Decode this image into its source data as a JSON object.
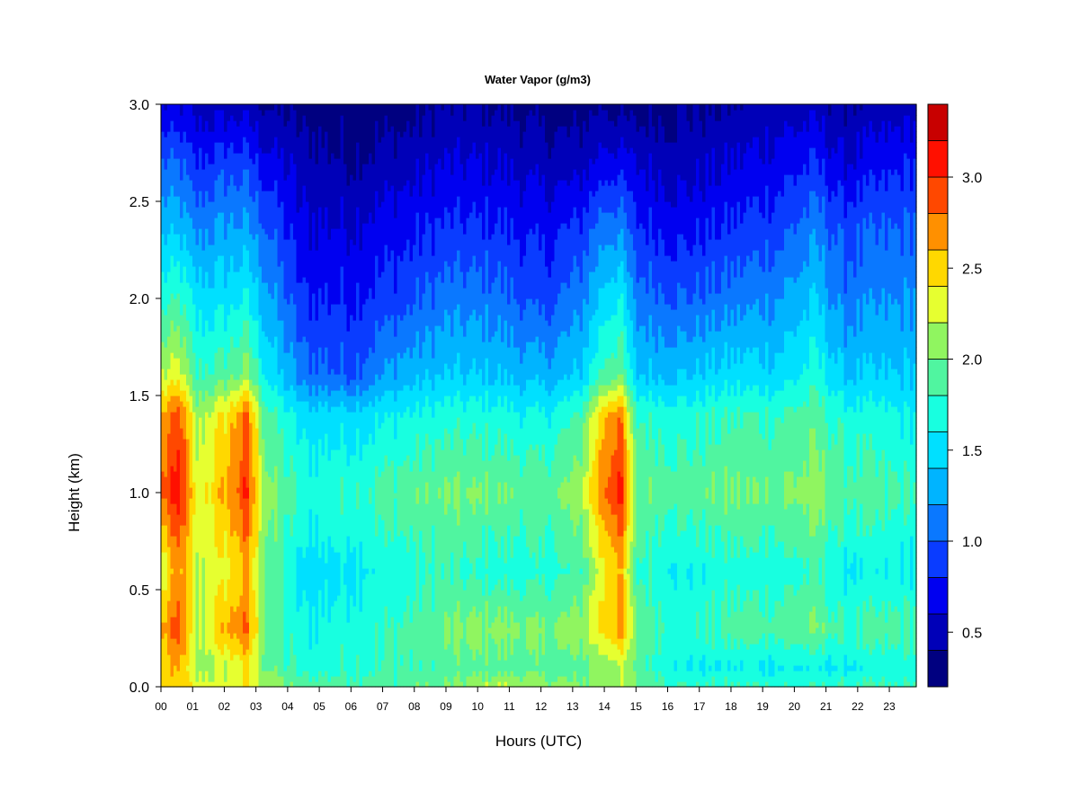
{
  "chart_data": {
    "type": "heatmap",
    "title": "Water Vapor (g/m3)",
    "xlabel": "Hours (UTC)",
    "ylabel": "Height (km)",
    "xlim": [
      0,
      23.85
    ],
    "ylim": [
      0,
      3.0
    ],
    "x_ticks": [
      "00",
      "01",
      "02",
      "03",
      "04",
      "05",
      "06",
      "07",
      "08",
      "09",
      "10",
      "11",
      "12",
      "13",
      "14",
      "15",
      "16",
      "17",
      "18",
      "19",
      "20",
      "21",
      "22",
      "23"
    ],
    "y_ticks": [
      "0.0",
      "0.5",
      "1.0",
      "1.5",
      "2.0",
      "2.5",
      "3.0"
    ],
    "colorbar": {
      "min": 0.2,
      "max": 3.4,
      "levels": [
        0.2,
        0.4,
        0.6,
        0.8,
        1.0,
        1.2,
        1.4,
        1.6,
        1.8,
        2.0,
        2.2,
        2.4,
        2.6,
        2.8,
        3.0,
        3.2,
        3.4
      ],
      "colors": [
        "#000080",
        "#0000b8",
        "#0000f0",
        "#0a3cff",
        "#0a78ff",
        "#00b4ff",
        "#00e0ff",
        "#18ffe0",
        "#50f5a0",
        "#90f560",
        "#e6ff30",
        "#ffd800",
        "#ff9000",
        "#ff4800",
        "#ff1000",
        "#c80000",
        "#800000"
      ],
      "tick_values": [
        0.5,
        1.0,
        1.5,
        2.0,
        2.5,
        3.0
      ],
      "tick_labels": [
        "0.5",
        "1.0",
        "1.5",
        "2.0",
        "2.5",
        "3.0"
      ]
    },
    "profile_heights_km": [
      0.0,
      0.1,
      0.3,
      0.6,
      1.0,
      1.4,
      1.6,
      2.0,
      2.4,
      2.7,
      3.0
    ],
    "profiles": [
      {
        "hour": 0.0,
        "values": [
          2.5,
          2.4,
          2.6,
          2.2,
          2.8,
          2.6,
          2.2,
          1.7,
          1.3,
          1.0,
          0.6
        ]
      },
      {
        "hour": 0.6,
        "values": [
          2.5,
          2.6,
          2.9,
          2.7,
          3.1,
          2.9,
          2.3,
          1.8,
          1.3,
          1.0,
          0.6
        ]
      },
      {
        "hour": 1.1,
        "values": [
          2.3,
          2.1,
          2.1,
          2.2,
          2.3,
          2.1,
          1.8,
          1.5,
          1.1,
          0.8,
          0.5
        ]
      },
      {
        "hour": 2.0,
        "values": [
          2.3,
          2.2,
          2.6,
          2.3,
          2.6,
          2.4,
          1.9,
          1.5,
          1.2,
          0.9,
          0.5
        ]
      },
      {
        "hour": 2.7,
        "values": [
          2.4,
          2.4,
          2.8,
          2.6,
          3.0,
          2.8,
          2.1,
          1.6,
          1.2,
          0.9,
          0.5
        ]
      },
      {
        "hour": 3.3,
        "values": [
          2.2,
          2.0,
          2.0,
          2.0,
          2.1,
          1.9,
          1.6,
          1.3,
          1.0,
          0.7,
          0.4
        ]
      },
      {
        "hour": 4.5,
        "values": [
          1.9,
          1.7,
          1.6,
          1.5,
          1.7,
          1.5,
          1.1,
          0.8,
          0.6,
          0.5,
          0.3
        ]
      },
      {
        "hour": 6.0,
        "values": [
          1.9,
          1.8,
          1.7,
          1.6,
          1.8,
          1.5,
          1.0,
          0.8,
          0.6,
          0.4,
          0.3
        ]
      },
      {
        "hour": 7.5,
        "values": [
          1.9,
          1.8,
          1.8,
          1.7,
          1.9,
          1.6,
          1.3,
          0.9,
          0.7,
          0.5,
          0.3
        ]
      },
      {
        "hour": 9.0,
        "values": [
          2.0,
          1.9,
          2.0,
          1.8,
          2.0,
          1.7,
          1.4,
          1.1,
          0.8,
          0.6,
          0.4
        ]
      },
      {
        "hour": 10.5,
        "values": [
          2.2,
          1.9,
          2.1,
          1.7,
          2.0,
          1.7,
          1.4,
          1.1,
          0.8,
          0.6,
          0.4
        ]
      },
      {
        "hour": 12.0,
        "values": [
          2.1,
          1.9,
          2.0,
          1.7,
          1.9,
          1.6,
          1.3,
          0.9,
          0.7,
          0.5,
          0.3
        ]
      },
      {
        "hour": 13.2,
        "values": [
          2.0,
          1.9,
          2.1,
          1.8,
          2.1,
          1.8,
          1.4,
          1.1,
          0.8,
          0.5,
          0.3
        ]
      },
      {
        "hour": 14.0,
        "values": [
          2.1,
          2.1,
          2.5,
          2.4,
          2.8,
          2.6,
          1.9,
          1.5,
          1.1,
          0.7,
          0.4
        ]
      },
      {
        "hour": 14.5,
        "values": [
          2.2,
          2.2,
          2.7,
          2.6,
          3.1,
          2.8,
          2.0,
          1.6,
          1.1,
          0.7,
          0.3
        ]
      },
      {
        "hour": 15.0,
        "values": [
          2.0,
          1.9,
          2.0,
          1.8,
          2.0,
          1.8,
          1.4,
          1.1,
          0.8,
          0.6,
          0.3
        ]
      },
      {
        "hour": 16.5,
        "values": [
          1.8,
          1.6,
          1.7,
          1.6,
          1.9,
          1.7,
          1.4,
          1.0,
          0.7,
          0.5,
          0.4
        ]
      },
      {
        "hour": 18.0,
        "values": [
          1.8,
          1.6,
          1.9,
          1.7,
          2.0,
          1.8,
          1.5,
          1.1,
          0.8,
          0.6,
          0.4
        ]
      },
      {
        "hour": 19.5,
        "values": [
          1.8,
          1.6,
          1.9,
          1.7,
          2.0,
          1.8,
          1.5,
          1.2,
          0.9,
          0.7,
          0.5
        ]
      },
      {
        "hour": 20.7,
        "values": [
          1.8,
          1.6,
          2.0,
          1.8,
          2.1,
          1.9,
          1.7,
          1.4,
          1.1,
          0.8,
          0.5
        ]
      },
      {
        "hour": 21.5,
        "values": [
          1.8,
          1.6,
          1.8,
          1.6,
          1.9,
          1.7,
          1.4,
          1.1,
          0.9,
          0.6,
          0.4
        ]
      },
      {
        "hour": 23.85,
        "values": [
          1.8,
          1.7,
          1.9,
          1.6,
          1.8,
          1.6,
          1.4,
          1.2,
          1.0,
          0.8,
          0.5
        ]
      }
    ]
  }
}
